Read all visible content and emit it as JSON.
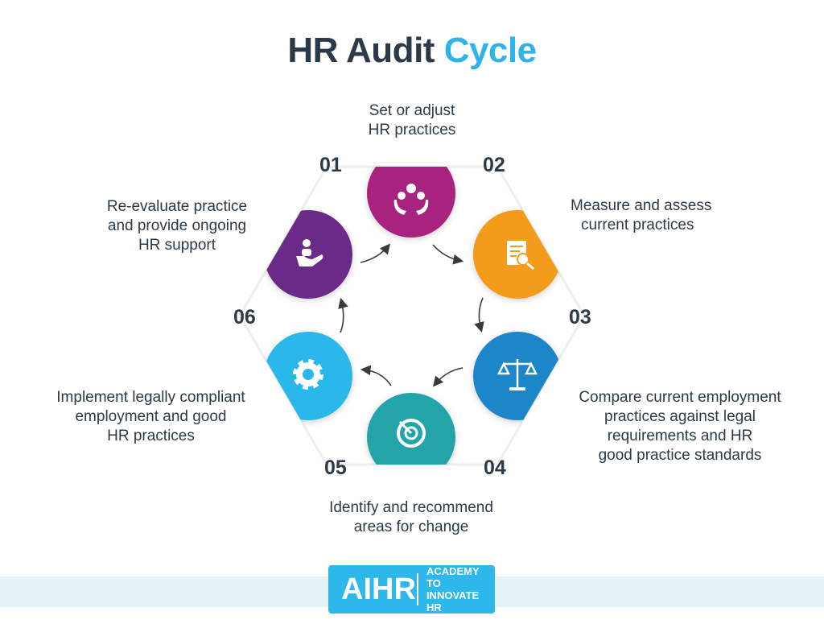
{
  "title": {
    "part1": "HR Audit",
    "part2": "Cycle"
  },
  "steps": [
    {
      "number": "01",
      "text_line1": "Set or adjust",
      "text_line2": "HR practices",
      "icon": "hands-gears-icon",
      "color": "#a8247f"
    },
    {
      "number": "02",
      "text_line1": "Measure and assess",
      "text_line2": "current practices",
      "icon": "document-search-icon",
      "color": "#f39c1e"
    },
    {
      "number": "03",
      "text_line1": "Compare current employment",
      "text_line2": "practices against legal",
      "text_line3": "requirements and HR",
      "text_line4": "good practice standards",
      "icon": "scales-icon",
      "color": "#1f86c8"
    },
    {
      "number": "04",
      "text_line1": "Identify and recommend",
      "text_line2": "areas for change",
      "icon": "target-icon",
      "color": "#20a4a9"
    },
    {
      "number": "05",
      "text_line1": "Implement legally compliant",
      "text_line2": "employment and good",
      "text_line3": "HR practices",
      "icon": "gear-icon",
      "color": "#2bb7ea"
    },
    {
      "number": "06",
      "text_line1": "Re-evaluate practice",
      "text_line2": "and provide ongoing",
      "text_line3": "HR support",
      "icon": "hand-person-icon",
      "color": "#6a2b87"
    }
  ],
  "logo": {
    "big": "AIHR",
    "line1": "ACADEMY TO",
    "line2": "INNOVATE HR",
    "color": "#2db8ec"
  }
}
